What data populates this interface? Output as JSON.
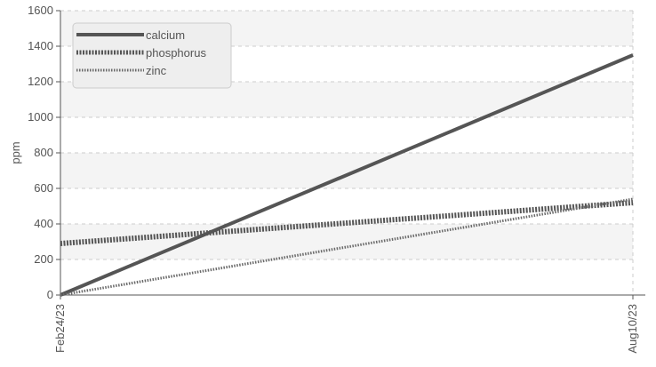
{
  "chart_data": {
    "type": "line",
    "ylabel": "ppm",
    "xlabel": "",
    "categories": [
      "Feb24/23",
      "Aug10/23"
    ],
    "ylim": [
      0,
      1600
    ],
    "yticks": [
      0,
      200,
      400,
      600,
      800,
      1000,
      1200,
      1400,
      1600
    ],
    "grid": true,
    "legend_position": "top-left",
    "series": [
      {
        "name": "calcium",
        "values": [
          0,
          1350
        ],
        "color": "#555555",
        "style": "solid"
      },
      {
        "name": "phosphorus",
        "values": [
          290,
          520
        ],
        "color": "#555555",
        "style": "dotted-thick"
      },
      {
        "name": "zinc",
        "values": [
          0,
          540
        ],
        "color": "#6a6a6a",
        "style": "dotted-thin"
      }
    ]
  }
}
